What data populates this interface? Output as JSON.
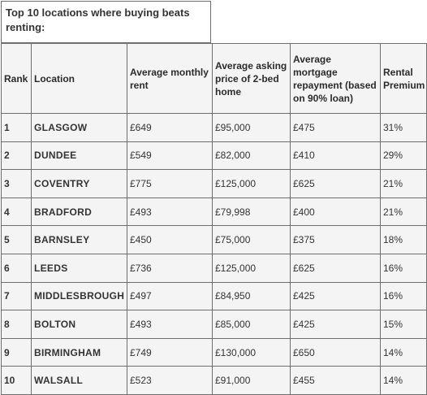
{
  "title": "Top 10 locations where buying beats renting:",
  "headers": [
    "Rank",
    "Location",
    "Average monthly rent",
    "Average asking price of 2-bed home",
    "Average mortgage repayment (based on 90% loan)",
    "Rental Premium"
  ],
  "rows": [
    [
      "1",
      "GLASGOW",
      "£649",
      "£95,000",
      "£475",
      "31%"
    ],
    [
      "2",
      "DUNDEE",
      "£549",
      "£82,000",
      "£410",
      "29%"
    ],
    [
      "3",
      "COVENTRY",
      "£775",
      "£125,000",
      "£625",
      "21%"
    ],
    [
      "4",
      "BRADFORD",
      "£493",
      "£79,998",
      "£400",
      "21%"
    ],
    [
      "5",
      "BARNSLEY",
      "£450",
      "£75,000",
      "£375",
      "18%"
    ],
    [
      "6",
      "LEEDS",
      "£736",
      "£125,000",
      "£625",
      "16%"
    ],
    [
      "7",
      "MIDDLESBROUGH",
      "£497",
      "£84,950",
      "£425",
      "16%"
    ],
    [
      "8",
      "BOLTON",
      "£493",
      "£85,000",
      "£425",
      "15%"
    ],
    [
      "9",
      "BIRMINGHAM",
      "£749",
      "£130,000",
      "£650",
      "14%"
    ],
    [
      "10",
      "WALSALL",
      "£523",
      "£91,000",
      "£455",
      "14%"
    ]
  ]
}
